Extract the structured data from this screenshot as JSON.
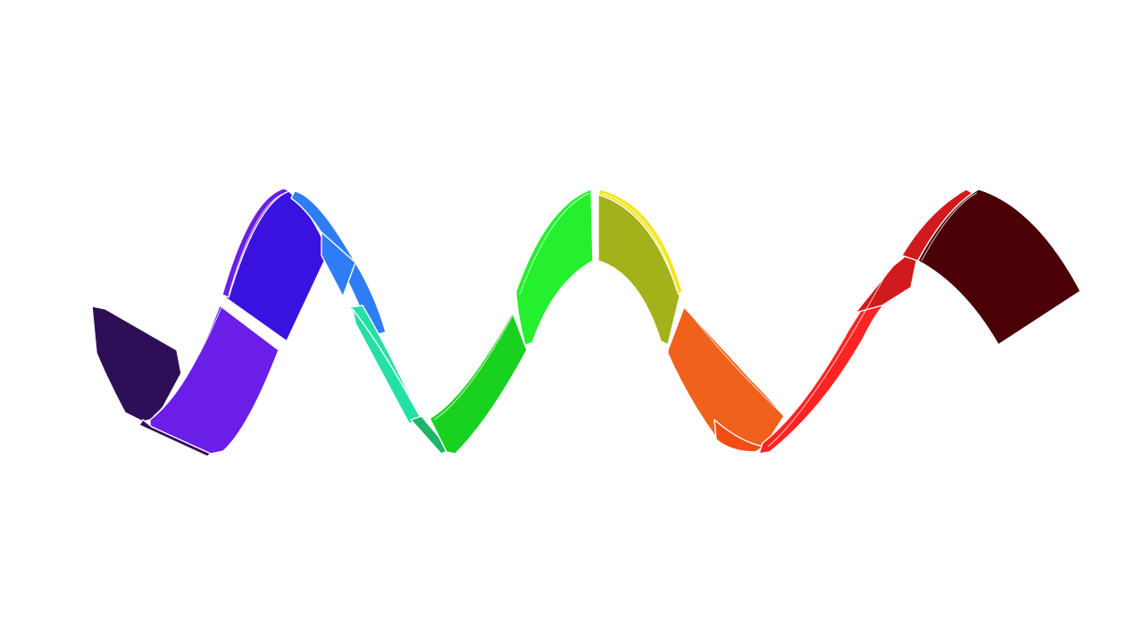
{
  "image": {
    "background": "#ffffff",
    "subject": "rainbow-wave-ribbon",
    "outline_color": "#ffffff"
  },
  "ribbon": {
    "segments": [
      {
        "name": "deep-indigo",
        "color": "#2e0f57"
      },
      {
        "name": "violet",
        "color": "#6a1ee8"
      },
      {
        "name": "blue-violet",
        "color": "#3a12e0"
      },
      {
        "name": "blue",
        "color": "#2f7df5"
      },
      {
        "name": "aqua",
        "color": "#25e0a6"
      },
      {
        "name": "teal",
        "color": "#1fb36c"
      },
      {
        "name": "green",
        "color": "#19d11f"
      },
      {
        "name": "bright-green",
        "color": "#24f02e"
      },
      {
        "name": "yellow-green",
        "color": "#a3b21a"
      },
      {
        "name": "yellow",
        "color": "#f5e51c"
      },
      {
        "name": "orange",
        "color": "#f0611c"
      },
      {
        "name": "orange-red",
        "color": "#f24d12"
      },
      {
        "name": "red",
        "color": "#ff2424"
      },
      {
        "name": "crimson",
        "color": "#d11a1e"
      },
      {
        "name": "maroon",
        "color": "#4a0006"
      }
    ]
  }
}
